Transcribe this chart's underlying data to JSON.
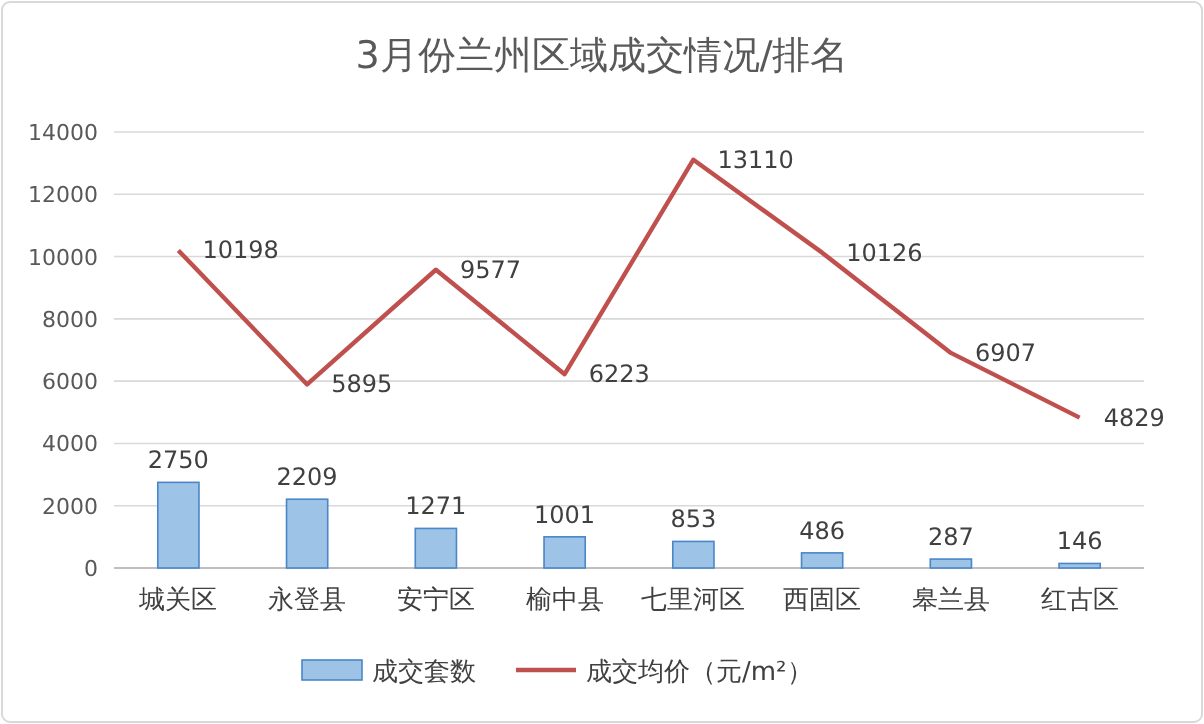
{
  "chart_data": {
    "type": "bar",
    "title": "3月份兰州区域成交情况/排名",
    "categories": [
      "城关区",
      "永登县",
      "安宁区",
      "榆中县",
      "七里河区",
      "西固区",
      "皋兰县",
      "红古区"
    ],
    "series": [
      {
        "name": "成交套数",
        "color": "#9dc3e6",
        "values": [
          2750,
          2209,
          1271,
          1001,
          853,
          486,
          287,
          146
        ]
      },
      {
        "name": "成交均价（元/m²）",
        "type": "line",
        "color": "#c0504d",
        "values": [
          10198,
          5895,
          9577,
          6223,
          13110,
          10126,
          6907,
          4829
        ]
      }
    ],
    "ylim": [
      0,
      14000
    ],
    "yticks": [
      0,
      2000,
      4000,
      6000,
      8000,
      10000,
      12000,
      14000
    ],
    "grid": "y",
    "legend": "bottom",
    "data_labels": true,
    "marker": "none"
  }
}
